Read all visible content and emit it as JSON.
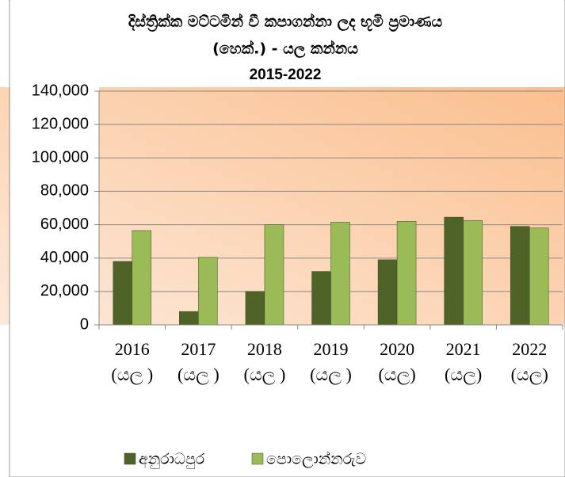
{
  "chart_data": {
    "type": "bar",
    "title": [
      "දිස්ත්‍රික්ක මට්ටමින් වී කපාගන්නා ලද භූමි ප්‍රමාණය",
      "(හෙක්.) - යල කන්නය",
      "2015-2022"
    ],
    "categories": [
      [
        "2016",
        "(යල )"
      ],
      [
        "2017",
        "(යල )"
      ],
      [
        "2018",
        "(යල )"
      ],
      [
        "2019",
        "(යල )"
      ],
      [
        "2020",
        "(යල)"
      ],
      [
        "2021",
        "(යල)"
      ],
      [
        "2022",
        "(යල)"
      ]
    ],
    "series": [
      {
        "name": "අනුරාධපුර",
        "color": "#4f6228",
        "values": [
          38000,
          8000,
          20000,
          32000,
          39000,
          64500,
          59000
        ]
      },
      {
        "name": "පොලොන්නරුව",
        "color": "#9bbb59",
        "values": [
          56500,
          40500,
          60000,
          61500,
          62000,
          62500,
          58000
        ]
      }
    ],
    "ylim": [
      0,
      140000
    ],
    "yticks": [
      0,
      {
        "value": 20000,
        "label": "20,000"
      },
      {
        "value": 40000,
        "label": "40,000"
      },
      {
        "value": 60000,
        "label": "60,000"
      },
      {
        "value": 80000,
        "label": "80,000"
      },
      {
        "value": 100000,
        "label": "100,000"
      },
      {
        "value": 120000,
        "label": "120,000"
      },
      {
        "value": 140000,
        "label": "140,000"
      }
    ],
    "grid": true,
    "legend": "bottom"
  }
}
